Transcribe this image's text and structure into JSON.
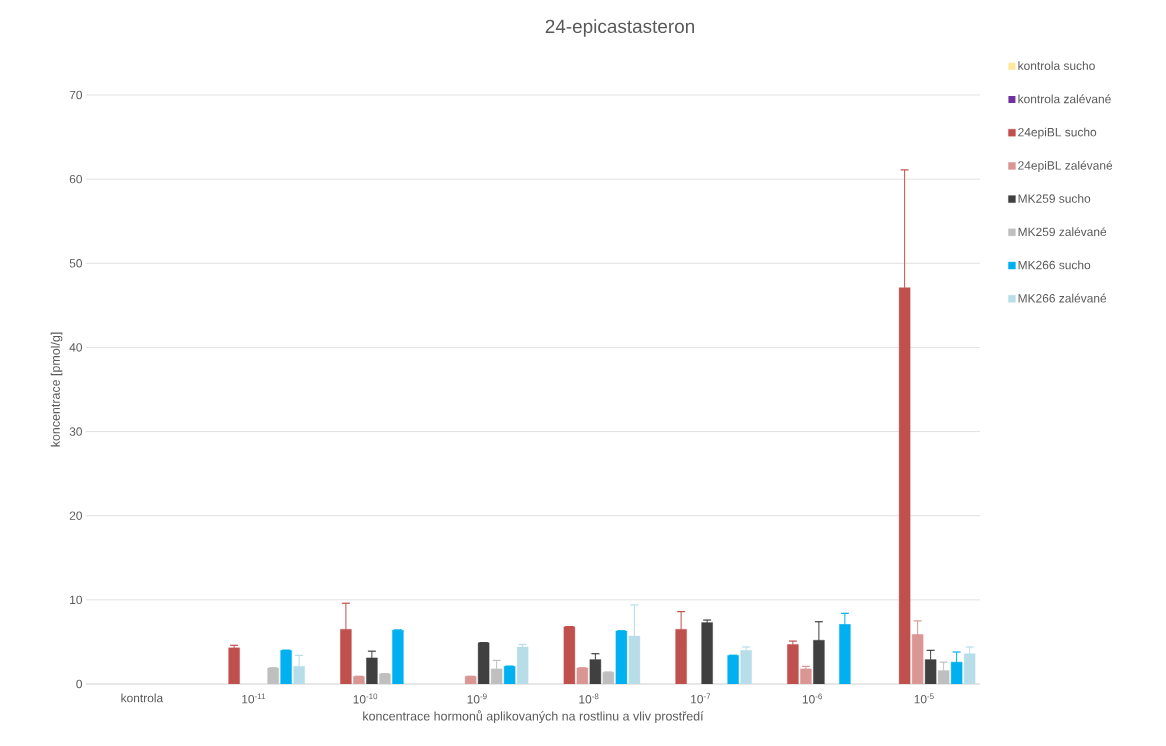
{
  "chart_data": {
    "type": "bar",
    "title": "24-epicastasteron",
    "xlabel": "koncentrace hormonů aplikovaných na rostlinu a vliv prostředí",
    "ylabel": "koncentrace [pmol/g]",
    "categories": [
      "kontrola",
      "10$^{-11}$",
      "10$^{-10}$",
      "10$^{-9}$",
      "10$^{-8}$",
      "10$^{-7}$",
      "10$^{-6}$",
      "10$^{-5}$"
    ],
    "ylim": [
      0,
      70
    ],
    "yticks": [
      0,
      10,
      20,
      30,
      40,
      50,
      60,
      70
    ],
    "grid": "y",
    "legend": "right",
    "series": [
      {
        "name": "kontrola sucho",
        "color": "#ffe699",
        "values": [
          null,
          null,
          null,
          null,
          null,
          null,
          null,
          null
        ]
      },
      {
        "name": "kontrola zalévané",
        "color": "#7030a0",
        "values": [
          null,
          null,
          null,
          null,
          null,
          null,
          null,
          null
        ]
      },
      {
        "name": "24epiBL sucho",
        "color": "#c0504d",
        "values": [
          null,
          4.3,
          6.5,
          null,
          6.8,
          6.5,
          4.7,
          47.1
        ],
        "errors": [
          null,
          0.3,
          3.1,
          null,
          null,
          2.1,
          0.4,
          14
        ]
      },
      {
        "name": "24epiBL zalévané",
        "color": "#da9694",
        "values": [
          null,
          null,
          0.9,
          0.9,
          1.9,
          null,
          1.8,
          5.9
        ],
        "errors": [
          null,
          null,
          null,
          null,
          null,
          null,
          0.3,
          1.6
        ]
      },
      {
        "name": "MK259 sucho",
        "color": "#404040",
        "values": [
          null,
          null,
          3.1,
          4.9,
          2.9,
          7.3,
          5.2,
          2.9
        ],
        "errors": [
          null,
          null,
          0.8,
          null,
          0.7,
          0.3,
          2.2,
          1.1
        ]
      },
      {
        "name": "MK259 zalévané",
        "color": "#bfbfbf",
        "values": [
          null,
          1.9,
          1.2,
          1.8,
          1.4,
          null,
          null,
          1.6
        ],
        "errors": [
          null,
          null,
          null,
          1.0,
          null,
          null,
          null,
          1.0
        ]
      },
      {
        "name": "MK266 sucho",
        "color": "#00b0f0",
        "values": [
          null,
          4.0,
          6.4,
          2.1,
          6.3,
          3.4,
          7.1,
          2.6
        ],
        "errors": [
          null,
          null,
          null,
          null,
          null,
          null,
          1.3,
          1.2
        ]
      },
      {
        "name": "MK266 zalévané",
        "color": "#b7dee8",
        "values": [
          null,
          2.1,
          null,
          4.4,
          5.7,
          4.0,
          null,
          3.6
        ],
        "errors": [
          null,
          1.3,
          null,
          0.3,
          3.7,
          0.4,
          null,
          0.8
        ]
      }
    ]
  }
}
